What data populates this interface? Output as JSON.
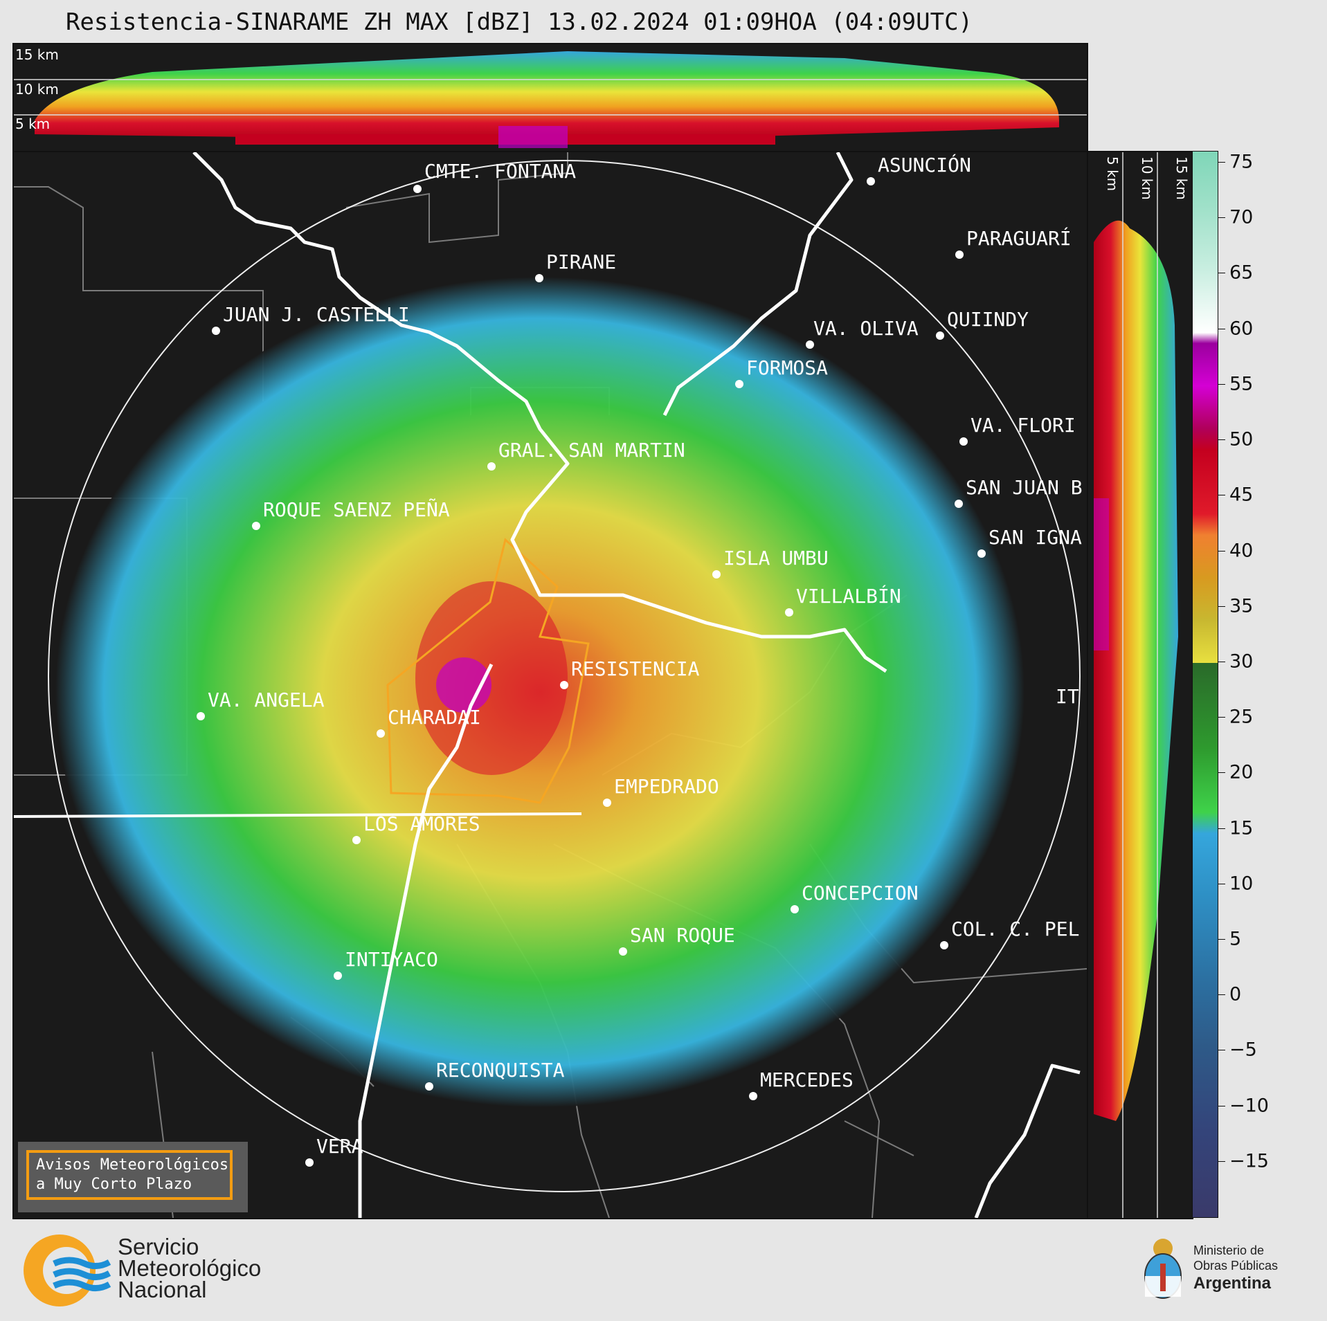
{
  "title": "Resistencia-SINARAME ZH MAX [dBZ] 13.02.2024 01:09HOA (04:09UTC)",
  "top_panel": {
    "height_labels": [
      "15 km",
      "10 km",
      "5 km"
    ]
  },
  "right_panel": {
    "height_labels": [
      "5 km",
      "10 km",
      "15 km"
    ]
  },
  "colorbar": {
    "ticks": [
      "75",
      "70",
      "65",
      "60",
      "55",
      "50",
      "45",
      "40",
      "35",
      "30",
      "25",
      "20",
      "15",
      "10",
      "5",
      "0",
      "−5",
      "−10",
      "−15"
    ],
    "range": [
      -20,
      76
    ]
  },
  "cities": [
    {
      "name": "CMTE. FONTANA"
    },
    {
      "name": "ASUNCIÓN"
    },
    {
      "name": "PARAGUARÍ"
    },
    {
      "name": "PIRANE"
    },
    {
      "name": "JUAN J. CASTELLI"
    },
    {
      "name": "VA. OLIVA"
    },
    {
      "name": "QUIINDY"
    },
    {
      "name": "FORMOSA"
    },
    {
      "name": "VA. FLORI"
    },
    {
      "name": "GRAL. SAN MARTIN"
    },
    {
      "name": "SAN JUAN B"
    },
    {
      "name": "ROQUE SAENZ PEÑA"
    },
    {
      "name": "SAN IGNA"
    },
    {
      "name": "ISLA UMBU"
    },
    {
      "name": "VILLALBÍN"
    },
    {
      "name": "RESISTENCIA"
    },
    {
      "name": "VA. ANGELA"
    },
    {
      "name": "CHARADAI"
    },
    {
      "name": "IT"
    },
    {
      "name": "EMPEDRADO"
    },
    {
      "name": "LOS AMORES"
    },
    {
      "name": "CONCEPCION"
    },
    {
      "name": "COL. C. PEL"
    },
    {
      "name": "SAN ROQUE"
    },
    {
      "name": "INTIYACO"
    },
    {
      "name": "RECONQUISTA"
    },
    {
      "name": "MERCEDES"
    },
    {
      "name": "VERA"
    }
  ],
  "warning_box": {
    "line1": "Avisos Meteorológicos",
    "line2": "a Muy Corto Plazo"
  },
  "smn_logo": {
    "line1": "Servicio",
    "line2": "Meteorológico",
    "line3": "Nacional"
  },
  "ministry_logo": {
    "line1": "Ministerio de",
    "line2": "Obras Públicas",
    "line3": "Argentina"
  },
  "colors": {
    "panel_bg": "#1a1a1a",
    "warning_border": "#f39c12",
    "river": "#ffffff",
    "area_outline": "#f5a623"
  }
}
